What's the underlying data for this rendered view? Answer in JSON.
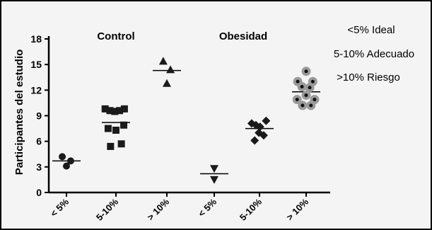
{
  "chart_data": {
    "type": "scatter",
    "ylabel": "Participantes del estudio",
    "xlabel": "",
    "ylim": [
      0,
      18
    ],
    "yticks": [
      0,
      3,
      6,
      9,
      12,
      15,
      18
    ],
    "categories": [
      "< 5%",
      "5-10%",
      "> 10%",
      "< 5%",
      "5-10%",
      "> 10%"
    ],
    "groups": [
      {
        "label": "Control",
        "categories": [
          0,
          1,
          2
        ]
      },
      {
        "label": "Obesidad",
        "categories": [
          3,
          4,
          5
        ]
      }
    ],
    "legend": [
      "<5% Ideal",
      "5-10% Adecuado",
      ">10% Riesgo"
    ],
    "series": [
      {
        "category": 0,
        "marker": "circle",
        "color": "#1a1a1a",
        "mean": 3.7,
        "points": [
          [
            -0.35,
            4.2
          ],
          [
            0.0,
            3.1
          ],
          [
            0.35,
            3.7
          ]
        ]
      },
      {
        "category": 1,
        "marker": "square",
        "color": "#1a1a1a",
        "mean": 8.2,
        "points": [
          [
            -0.9,
            9.8
          ],
          [
            -0.5,
            9.6
          ],
          [
            -0.1,
            9.5
          ],
          [
            0.3,
            9.6
          ],
          [
            0.7,
            9.8
          ],
          [
            -0.65,
            7.5
          ],
          [
            0.0,
            7.3
          ],
          [
            0.65,
            7.9
          ],
          [
            -0.45,
            5.4
          ],
          [
            0.45,
            5.7
          ]
        ]
      },
      {
        "category": 2,
        "marker": "triangle-up",
        "color": "#1a1a1a",
        "mean": 14.3,
        "points": [
          [
            -0.3,
            15.4
          ],
          [
            0.3,
            14.4
          ],
          [
            0.0,
            12.8
          ]
        ]
      },
      {
        "category": 3,
        "marker": "triangle-down",
        "color": "#1a1a1a",
        "mean": 2.2,
        "points": [
          [
            0.0,
            2.8
          ],
          [
            0.0,
            1.5
          ]
        ]
      },
      {
        "category": 4,
        "marker": "diamond",
        "color": "#1a1a1a",
        "mean": 7.5,
        "points": [
          [
            -0.65,
            8.1
          ],
          [
            -0.3,
            7.9
          ],
          [
            0.05,
            7.7
          ],
          [
            0.55,
            8.4
          ],
          [
            -0.05,
            7.0
          ],
          [
            0.35,
            6.7
          ],
          [
            -0.4,
            6.1
          ]
        ]
      },
      {
        "category": 5,
        "marker": "ring",
        "color": "#9a9a9a",
        "mean": 11.8,
        "points": [
          [
            0.0,
            14.2
          ],
          [
            -0.7,
            13.0
          ],
          [
            0.55,
            13.0
          ],
          [
            -0.35,
            12.4
          ],
          [
            0.3,
            12.3
          ],
          [
            0.0,
            11.4
          ],
          [
            -0.75,
            10.9
          ],
          [
            0.7,
            10.9
          ],
          [
            -0.3,
            10.2
          ],
          [
            0.4,
            10.2
          ]
        ]
      }
    ]
  }
}
